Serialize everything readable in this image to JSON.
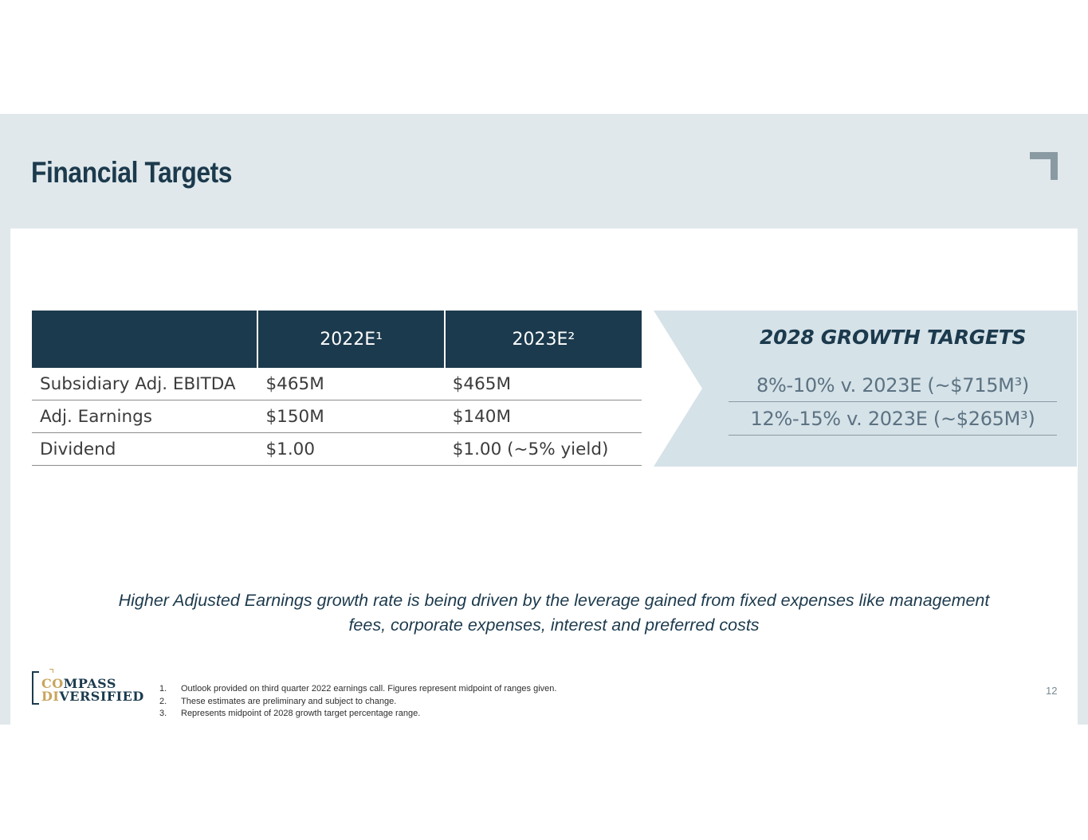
{
  "slide": {
    "title": "Financial Targets",
    "page_number": "12"
  },
  "table": {
    "headers": [
      "",
      "2022E¹",
      "2023E²"
    ],
    "rows": [
      [
        "Subsidiary Adj. EBITDA",
        "$465M",
        "$465M"
      ],
      [
        "Adj. Earnings",
        "$150M",
        "$140M"
      ],
      [
        "Dividend",
        "$1.00",
        "$1.00 (~5% yield)"
      ]
    ]
  },
  "growth_targets": {
    "heading": "2028 GROWTH TARGETS",
    "items": [
      "8%-10% v. 2023E (~$715M³)",
      "12%-15% v. 2023E (~$265M³)"
    ]
  },
  "callout": {
    "text": "Higher Adjusted Earnings growth rate is being driven by the leverage gained from fixed expenses like management fees, corporate expenses, interest and preferred costs"
  },
  "logo": {
    "line1_gold": "CO",
    "line1_navy": "MPASS",
    "line2_gold": "DI",
    "line2_navy": "VERSIFIED"
  },
  "footnotes": [
    {
      "num": "1.",
      "text": "Outlook provided on third quarter 2022 earnings call. Figures represent midpoint of ranges given."
    },
    {
      "num": "2.",
      "text": "These estimates are preliminary and subject to change."
    },
    {
      "num": "3.",
      "text": "Represents midpoint of 2028 growth target percentage range."
    }
  ],
  "colors": {
    "navy": "#1c3a4d",
    "slide_bg": "#e0e8eb",
    "panel_bg": "#d5e2e8",
    "gold": "#c9a45c"
  }
}
